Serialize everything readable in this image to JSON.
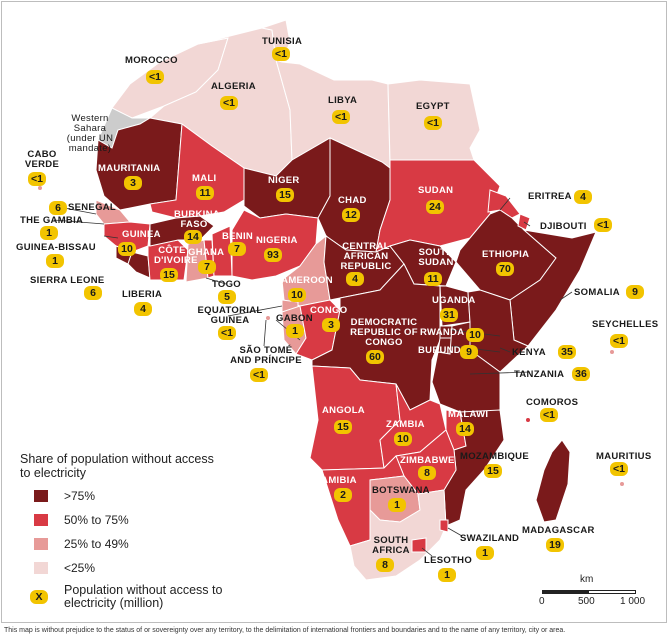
{
  "colors": {
    "c75": "#7a1a1b",
    "c50": "#d83a44",
    "c25": "#e79a98",
    "clow": "#f2d7d5",
    "badge": "#f2c400",
    "uncolored": "#cccccc"
  },
  "countries": {
    "morocco": {
      "name": "MOROCCO",
      "value": "<1"
    },
    "tunisia": {
      "name": "TUNISIA",
      "value": "<1"
    },
    "algeria": {
      "name": "ALGERIA",
      "value": "<1"
    },
    "libya": {
      "name": "LIBYA",
      "value": "<1"
    },
    "egypt": {
      "name": "EGYPT",
      "value": "<1"
    },
    "western_sahara": {
      "name": "Western Sahara (under UN mandate)"
    },
    "cabo_verde": {
      "name": "CABO VERDE",
      "value": "<1"
    },
    "mauritania": {
      "name": "MAURITANIA",
      "value": "3"
    },
    "mali": {
      "name": "MALI",
      "value": "11"
    },
    "niger": {
      "name": "NIGER",
      "value": "15"
    },
    "chad": {
      "name": "CHAD",
      "value": "12"
    },
    "sudan": {
      "name": "SUDAN",
      "value": "24"
    },
    "eritrea": {
      "name": "ERITREA",
      "value": "4"
    },
    "djibouti": {
      "name": "DJIBOUTI",
      "value": "<1"
    },
    "senegal": {
      "name": "SENEGAL",
      "value": "6"
    },
    "the_gambia": {
      "name": "THE GAMBIA",
      "value": "1"
    },
    "guinea_bissau": {
      "name": "GUINEA-BISSAU",
      "value": "1"
    },
    "guinea": {
      "name": "GUINEA",
      "value": "10"
    },
    "burkina_faso": {
      "name": "BURKINA FASO",
      "value": "14"
    },
    "benin": {
      "name": "BENIN",
      "value": "7"
    },
    "nigeria": {
      "name": "NIGERIA",
      "value": "93"
    },
    "cote_divoire": {
      "name": "CÔTE D'IVOIRE",
      "value": "15"
    },
    "ghana": {
      "name": "GHANA",
      "value": "7"
    },
    "sierra_leone": {
      "name": "SIERRA LEONE",
      "value": "6"
    },
    "liberia": {
      "name": "LIBERIA",
      "value": "4"
    },
    "togo": {
      "name": "TOGO",
      "value": "5"
    },
    "central_african_republic": {
      "name": "CENTRAL AFRICAN REPUBLIC",
      "value": "4"
    },
    "south_sudan": {
      "name": "SOUTH SUDAN",
      "value": "11"
    },
    "ethiopia": {
      "name": "ETHIOPIA",
      "value": "70"
    },
    "somalia": {
      "name": "SOMALIA",
      "value": "9"
    },
    "cameroon": {
      "name": "CAMEROON",
      "value": "10"
    },
    "equatorial_guinea": {
      "name": "EQUATORIAL GUINEA",
      "value": "<1"
    },
    "gabon": {
      "name": "GABON",
      "value": "1"
    },
    "congo": {
      "name": "CONGO",
      "value": "3"
    },
    "drc": {
      "name": "DEMOCRATIC REPUBLIC OF CONGO",
      "value": "60"
    },
    "uganda": {
      "name": "UGANDA",
      "value": "31"
    },
    "rwanda": {
      "name": "RWANDA",
      "value": "10"
    },
    "burundi": {
      "name": "BURUNDI",
      "value": "9"
    },
    "kenya": {
      "name": "KENYA",
      "value": "35"
    },
    "seychelles": {
      "name": "SEYCHELLES",
      "value": "<1"
    },
    "sao_tome": {
      "name": "SÃO TOMÉ AND PRÍNCIPE",
      "value": "<1"
    },
    "tanzania": {
      "name": "TANZANIA",
      "value": "36"
    },
    "comoros": {
      "name": "COMOROS",
      "value": "<1"
    },
    "angola": {
      "name": "ANGOLA",
      "value": "15"
    },
    "zambia": {
      "name": "ZAMBIA",
      "value": "10"
    },
    "malawi": {
      "name": "MALAWI",
      "value": "14"
    },
    "zimbabwe": {
      "name": "ZIMBABWE",
      "value": "8"
    },
    "mozambique": {
      "name": "MOZAMBIQUE",
      "value": "15"
    },
    "mauritius": {
      "name": "MAURITIUS",
      "value": "<1"
    },
    "namibia": {
      "name": "NAMIBIA",
      "value": "2"
    },
    "botswana": {
      "name": "BOTSWANA",
      "value": "1"
    },
    "madagascar": {
      "name": "MADAGASCAR",
      "value": "19"
    },
    "swaziland": {
      "name": "SWAZILAND",
      "value": "1"
    },
    "south_africa": {
      "name": "SOUTH AFRICA",
      "value": "8"
    },
    "lesotho": {
      "name": "LESOTHO",
      "value": "1"
    }
  },
  "legend": {
    "title": "Share of population without access to electricity",
    "items": [
      {
        "label": ">75%",
        "color": "#7a1a1b"
      },
      {
        "label": "50% to 75%",
        "color": "#d83a44"
      },
      {
        "label": "25% to 49%",
        "color": "#e79a98"
      },
      {
        "label": "<25%",
        "color": "#f2d7d5"
      }
    ],
    "badge_symbol": "X",
    "badge_label": "Population without access to electricity (million)"
  },
  "scalebar": {
    "unit": "km",
    "ticks": [
      "0",
      "500",
      "1 000"
    ]
  },
  "disclaimer": "This map is without prejudice to the status of or sovereignty over any territory, to the delimitation of international frontiers and boundaries and to the name of any territory, city or area."
}
